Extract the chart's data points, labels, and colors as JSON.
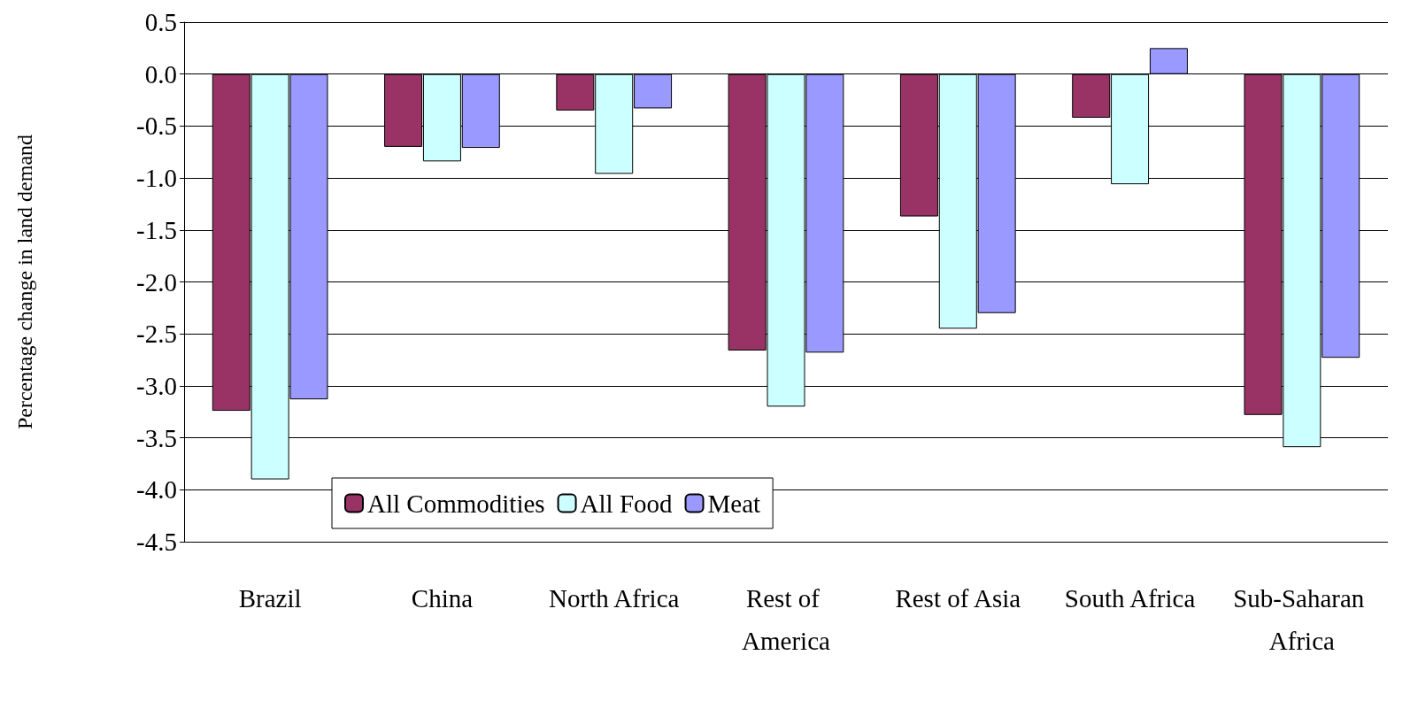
{
  "chart_data": {
    "type": "bar",
    "ylabel": "Percentage change in land demand",
    "categories": [
      "Brazil",
      "China",
      "North Africa",
      "Rest of America",
      "Rest of Asia",
      "South Africa",
      "Sub-Saharan Africa"
    ],
    "series": [
      {
        "name": "All Commodities",
        "color": "#993366",
        "values": [
          -3.24,
          -0.7,
          -0.35,
          -2.66,
          -1.37,
          -0.42,
          -3.28
        ]
      },
      {
        "name": "All Food",
        "color": "#ccffff",
        "values": [
          -3.9,
          -0.84,
          -0.96,
          -3.2,
          -2.45,
          -1.06,
          -3.59
        ]
      },
      {
        "name": "Meat",
        "color": "#9999ff",
        "values": [
          -3.13,
          -0.71,
          -0.33,
          -2.68,
          -2.3,
          0.25,
          -2.73
        ]
      }
    ],
    "ylim": [
      -4.5,
      0.5
    ],
    "yticks": [
      {
        "value": 0.5,
        "label": "0.5"
      },
      {
        "value": 0,
        "label": "0.0"
      },
      {
        "value": -0.5,
        "label": "-0.5"
      },
      {
        "value": -1,
        "label": "-1.0"
      },
      {
        "value": -1.5,
        "label": "-1.5"
      },
      {
        "value": -2,
        "label": "-2.0"
      },
      {
        "value": -2.5,
        "label": "-2.5"
      },
      {
        "value": -3,
        "label": "-3.0"
      },
      {
        "value": -3.5,
        "label": "-3.5"
      },
      {
        "value": -4,
        "label": "-4.0"
      },
      {
        "value": -4.5,
        "label": "-4.5"
      }
    ],
    "grid": "y",
    "legend": "bottom left"
  }
}
